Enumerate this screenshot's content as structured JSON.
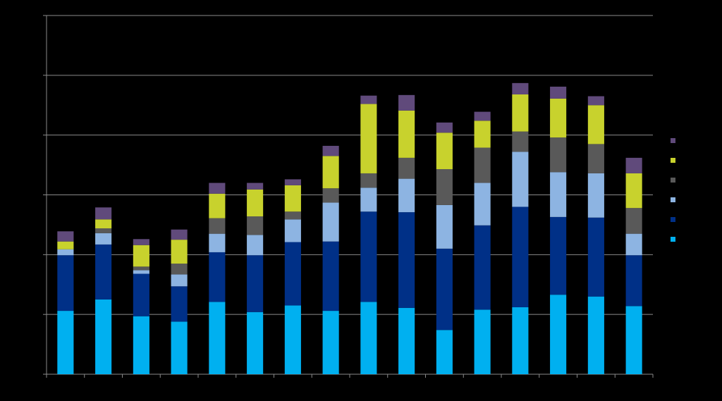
{
  "chart_data": {
    "type": "bar",
    "stacked": true,
    "title": "",
    "xlabel": "",
    "ylabel": "",
    "ylim": [
      0,
      6
    ],
    "grid": "horizontal",
    "legend_position": "right",
    "categories": [
      "",
      "",
      "",
      "",
      "",
      "",
      "",
      "",
      "",
      "",
      "",
      "",
      "",
      "",
      "",
      ""
    ],
    "series": [
      {
        "color": "#00b0f0",
        "values": [
          1.06,
          1.25,
          0.97,
          0.88,
          1.21,
          1.04,
          1.15,
          1.06,
          1.21,
          1.11,
          0.74,
          1.08,
          1.12,
          1.33,
          1.3,
          1.14
        ]
      },
      {
        "color": "#003087",
        "values": [
          0.93,
          0.92,
          0.71,
          0.59,
          0.83,
          0.95,
          1.06,
          1.16,
          1.51,
          1.6,
          1.36,
          1.41,
          1.68,
          1.3,
          1.32,
          0.85
        ]
      },
      {
        "color": "#8db4e2",
        "values": [
          0.1,
          0.19,
          0.06,
          0.2,
          0.31,
          0.34,
          0.38,
          0.65,
          0.4,
          0.56,
          0.73,
          0.71,
          0.92,
          0.75,
          0.74,
          0.36
        ]
      },
      {
        "color": "#595959",
        "values": [
          0.0,
          0.08,
          0.06,
          0.18,
          0.26,
          0.31,
          0.13,
          0.24,
          0.24,
          0.35,
          0.6,
          0.59,
          0.34,
          0.58,
          0.49,
          0.43
        ]
      },
      {
        "color": "#c8d22d",
        "values": [
          0.13,
          0.15,
          0.36,
          0.4,
          0.41,
          0.45,
          0.44,
          0.54,
          1.16,
          0.79,
          0.61,
          0.45,
          0.62,
          0.65,
          0.65,
          0.58
        ]
      },
      {
        "color": "#604a7b",
        "values": [
          0.17,
          0.2,
          0.1,
          0.17,
          0.18,
          0.11,
          0.1,
          0.17,
          0.14,
          0.26,
          0.17,
          0.15,
          0.19,
          0.2,
          0.15,
          0.26
        ]
      }
    ]
  }
}
